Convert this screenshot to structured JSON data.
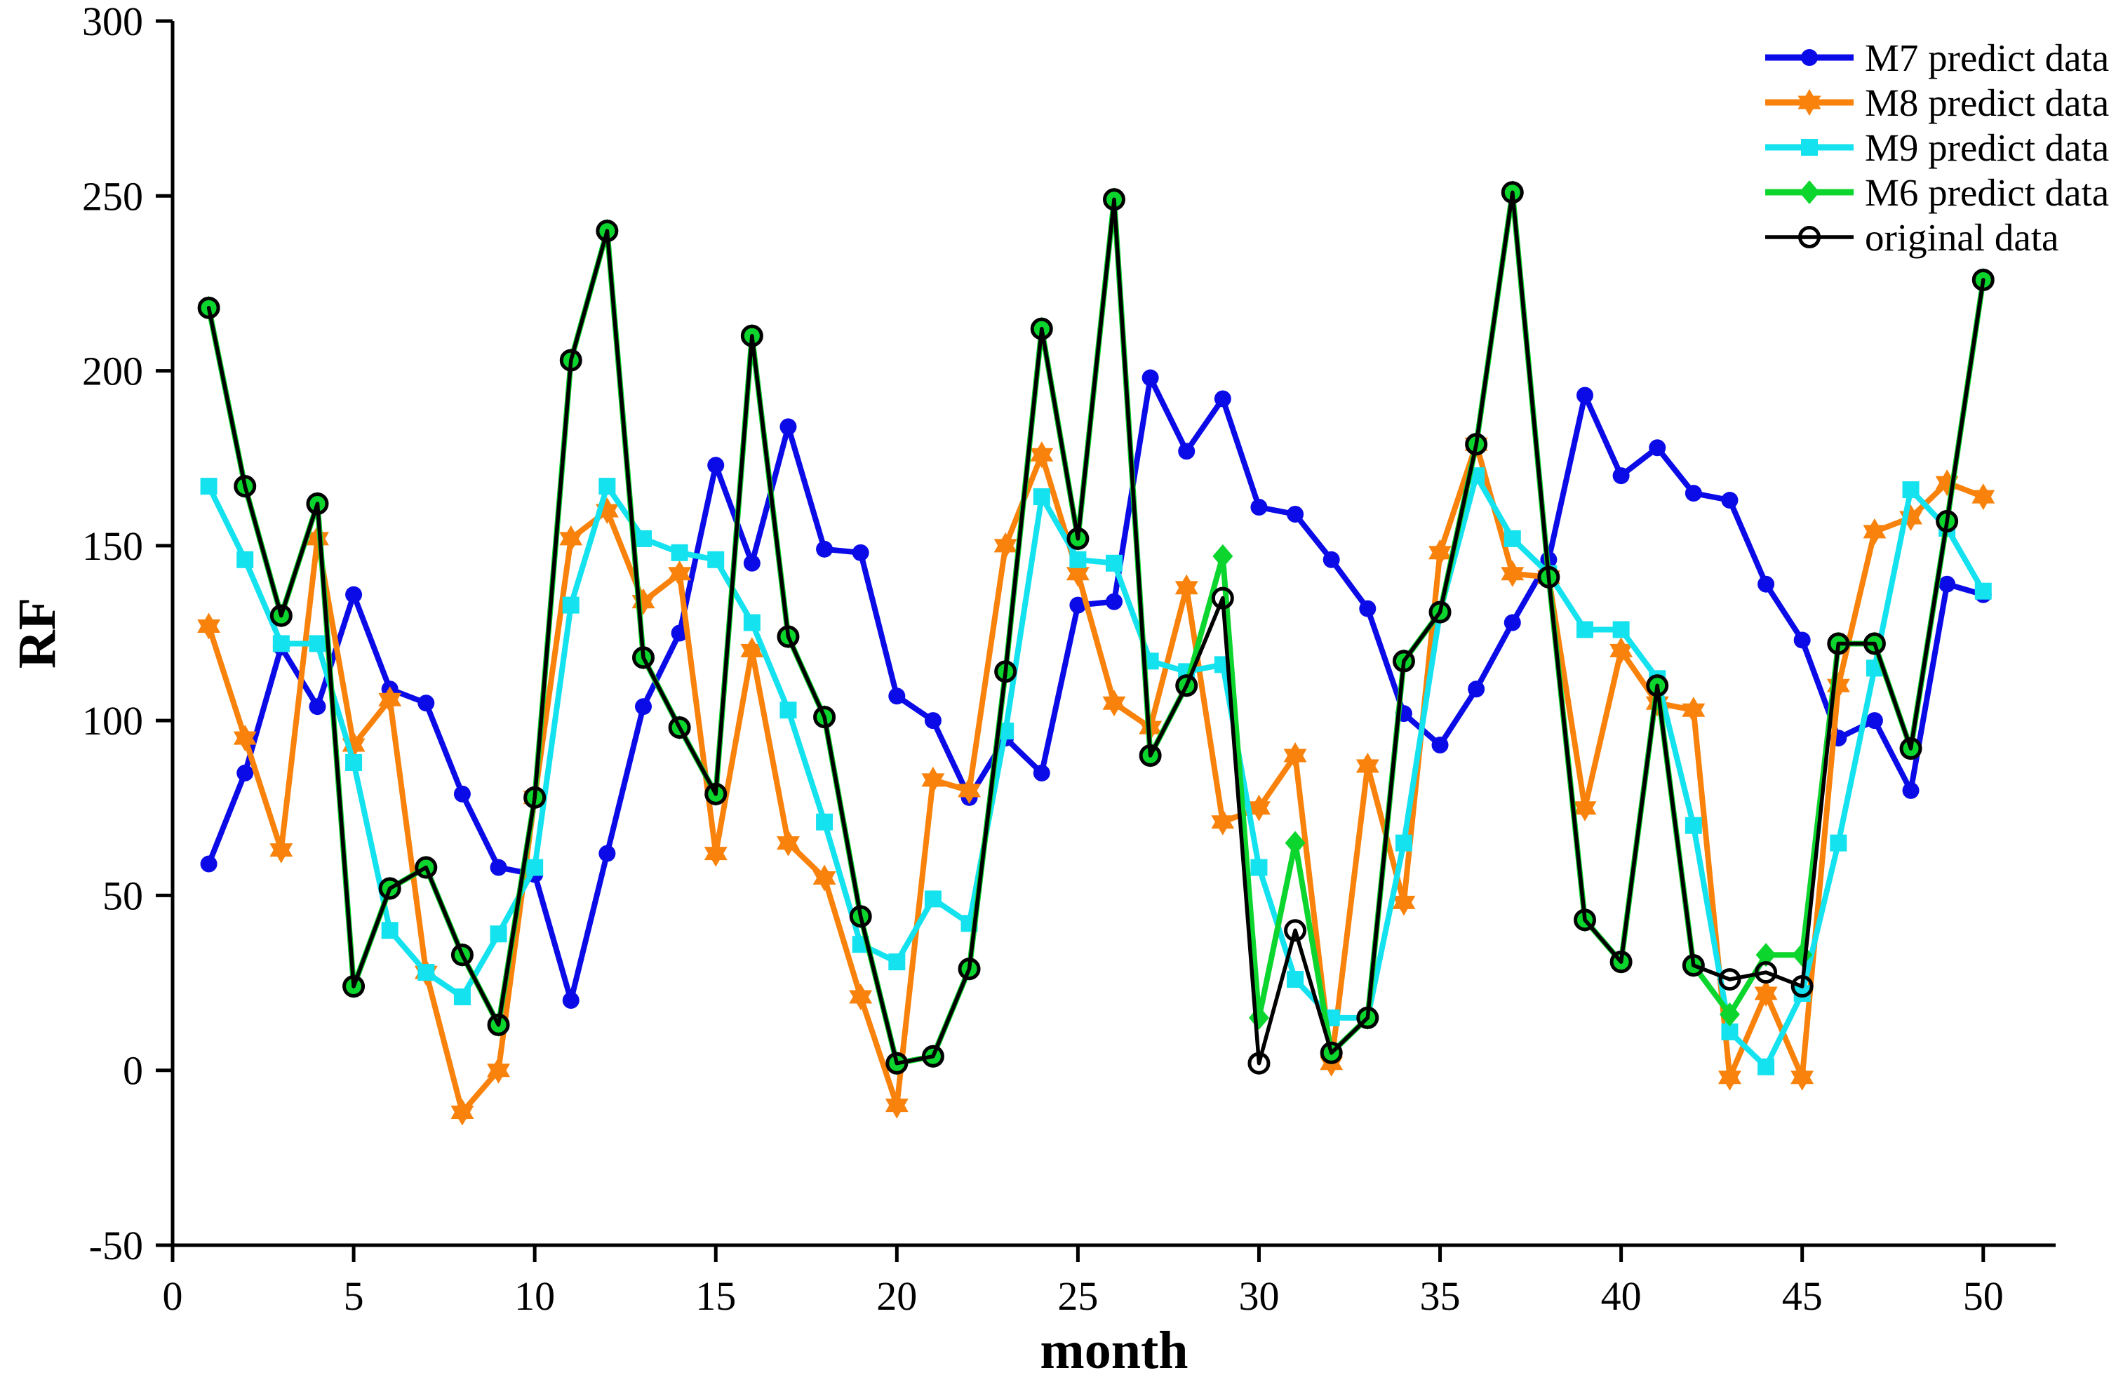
{
  "chart_data": {
    "type": "line",
    "title": "",
    "xlabel": "month",
    "ylabel": "RF",
    "xlim": [
      0,
      52
    ],
    "ylim": [
      -50,
      300
    ],
    "x_ticks": [
      0,
      5,
      10,
      15,
      20,
      25,
      30,
      35,
      40,
      45,
      50
    ],
    "y_ticks": [
      -50,
      0,
      50,
      100,
      150,
      200,
      250,
      300
    ],
    "grid": false,
    "legend_position": "top-right",
    "x": [
      1,
      2,
      3,
      4,
      5,
      6,
      7,
      8,
      9,
      10,
      11,
      12,
      13,
      14,
      15,
      16,
      17,
      18,
      19,
      20,
      21,
      22,
      23,
      24,
      25,
      26,
      27,
      28,
      29,
      30,
      31,
      32,
      33,
      34,
      35,
      36,
      37,
      38,
      39,
      40,
      41,
      42,
      43,
      44,
      45,
      46,
      47,
      48,
      49,
      50
    ],
    "series": [
      {
        "name": "M7 predict data",
        "color": "#0b0be8",
        "marker": "circle",
        "values": [
          59,
          85,
          121,
          104,
          136,
          109,
          105,
          79,
          58,
          56,
          20,
          62,
          104,
          125,
          173,
          145,
          184,
          149,
          148,
          107,
          100,
          78,
          95,
          85,
          133,
          134,
          198,
          177,
          192,
          161,
          159,
          146,
          132,
          102,
          93,
          109,
          128,
          146,
          193,
          170,
          178,
          165,
          163,
          139,
          123,
          95,
          100,
          80,
          139,
          136
        ]
      },
      {
        "name": "M8 predict data",
        "color": "#f8820b",
        "marker": "star6",
        "values": [
          127,
          95,
          63,
          152,
          93,
          106,
          28,
          -12,
          0,
          78,
          152,
          160,
          134,
          142,
          62,
          120,
          65,
          55,
          21,
          -10,
          83,
          80,
          150,
          176,
          142,
          105,
          98,
          138,
          71,
          75,
          90,
          2,
          87,
          48,
          148,
          179,
          142,
          141,
          75,
          120,
          105,
          103,
          -2,
          22,
          -2,
          110,
          154,
          158,
          168,
          164
        ]
      },
      {
        "name": "M9 predict data",
        "color": "#14e2ee",
        "marker": "square",
        "values": [
          167,
          146,
          122,
          122,
          88,
          40,
          28,
          21,
          39,
          58,
          133,
          167,
          152,
          148,
          146,
          128,
          103,
          71,
          36,
          31,
          49,
          42,
          97,
          164,
          146,
          145,
          117,
          114,
          116,
          58,
          26,
          15,
          15,
          65,
          131,
          170,
          152,
          142,
          126,
          126,
          112,
          70,
          11,
          1,
          22,
          65,
          115,
          166,
          155,
          137
        ]
      },
      {
        "name": "M6 predict data",
        "color": "#0cd62e",
        "marker": "diamond",
        "values": [
          218,
          167,
          130,
          162,
          24,
          52,
          58,
          33,
          13,
          78,
          203,
          240,
          118,
          98,
          79,
          210,
          124,
          101,
          44,
          2,
          4,
          29,
          114,
          212,
          152,
          249,
          90,
          110,
          147,
          15,
          65,
          5,
          15,
          117,
          131,
          179,
          251,
          141,
          43,
          31,
          110,
          30,
          16,
          33,
          33,
          122,
          122,
          92,
          157,
          226
        ]
      },
      {
        "name": "original data",
        "color": "#000000",
        "marker": "open-circle",
        "values": [
          218,
          167,
          130,
          162,
          24,
          52,
          58,
          33,
          13,
          78,
          203,
          240,
          118,
          98,
          79,
          210,
          124,
          101,
          44,
          2,
          4,
          29,
          114,
          212,
          152,
          249,
          90,
          110,
          135,
          2,
          40,
          5,
          15,
          117,
          131,
          179,
          251,
          141,
          43,
          31,
          110,
          30,
          26,
          28,
          24,
          122,
          122,
          92,
          157,
          226
        ]
      }
    ]
  }
}
